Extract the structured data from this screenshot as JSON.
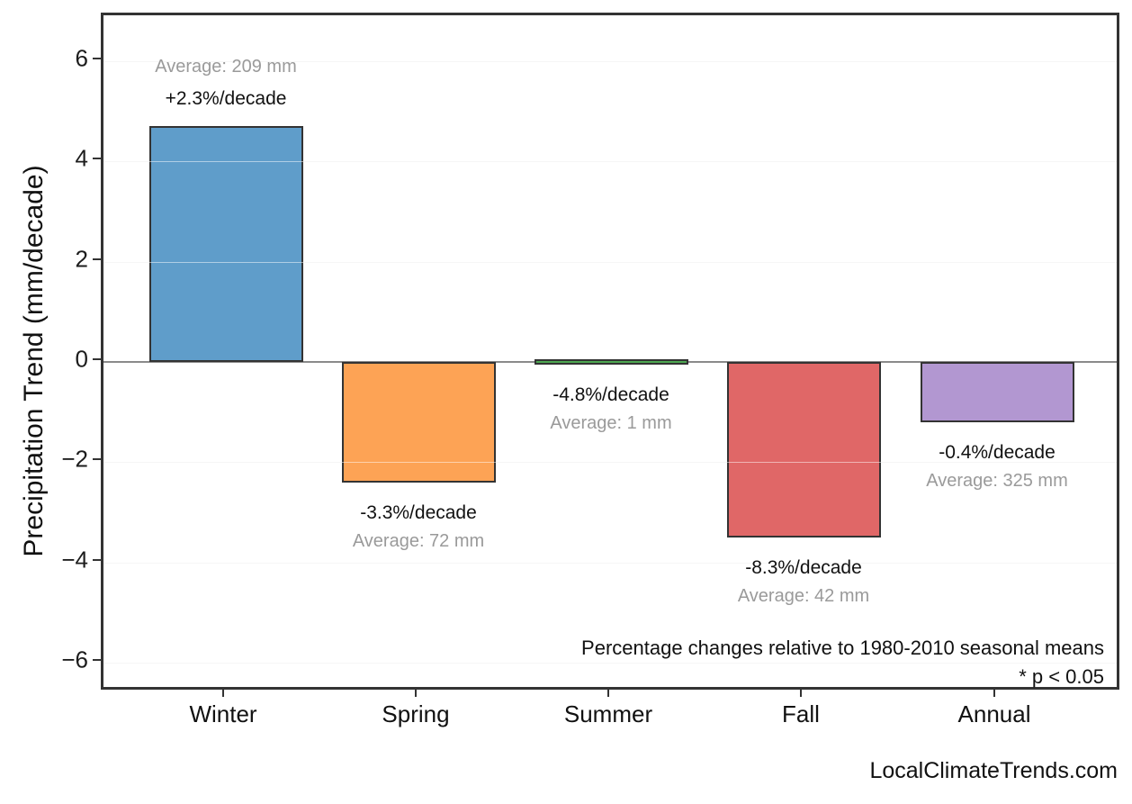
{
  "watermark": "LocalClimateTrends.com",
  "chart_data": {
    "type": "bar",
    "title": "",
    "xlabel": "",
    "ylabel": "Precipitation Trend (mm/decade)",
    "categories": [
      "Winter",
      "Spring",
      "Summer",
      "Fall",
      "Annual"
    ],
    "values_mm_per_decade": [
      4.7,
      -2.4,
      -0.05,
      -3.5,
      -1.2
    ],
    "ylim": [
      -6.9,
      6.9
    ],
    "yticks": [
      6,
      4,
      2,
      0,
      -2,
      -4,
      -6
    ],
    "ytick_labels": [
      "6",
      "4",
      "2",
      "0",
      "−2",
      "−4",
      "−6"
    ],
    "grid": "horizontal",
    "legend": "none",
    "bars": [
      {
        "category": "Winter",
        "value": 4.7,
        "color": "#5F9DCA",
        "pct_label": "+2.3%/decade",
        "avg_label": "Average: 209 mm",
        "pct_change_per_decade": 2.3,
        "average_mm": 209
      },
      {
        "category": "Spring",
        "value": -2.4,
        "color": "#FDA355",
        "pct_label": "-3.3%/decade",
        "avg_label": "Average: 72 mm",
        "pct_change_per_decade": -3.3,
        "average_mm": 72
      },
      {
        "category": "Summer",
        "value": -0.05,
        "color": "#4EA852",
        "pct_label": "-4.8%/decade",
        "avg_label": "Average: 1 mm",
        "pct_change_per_decade": -4.8,
        "average_mm": 1
      },
      {
        "category": "Fall",
        "value": -3.5,
        "color": "#E06767",
        "pct_label": "-8.3%/decade",
        "avg_label": "Average: 42 mm",
        "pct_change_per_decade": -8.3,
        "average_mm": 42
      },
      {
        "category": "Annual",
        "value": -1.2,
        "color": "#B297D1",
        "pct_label": "-0.4%/decade",
        "avg_label": "Average: 325 mm",
        "pct_change_per_decade": -0.4,
        "average_mm": 325
      }
    ],
    "annotations": [
      "Percentage changes relative to 1980-2010 seasonal means",
      "* p < 0.05"
    ],
    "bar_edge_color": "#333333",
    "zero_line_color": "#8a8a8a",
    "gridline_color": "#ececec"
  }
}
